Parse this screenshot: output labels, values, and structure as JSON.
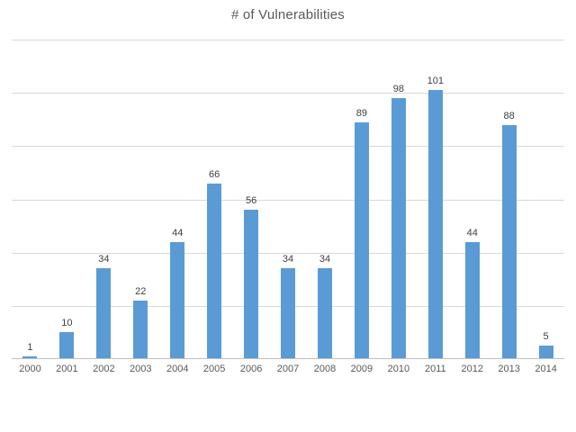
{
  "chart_data": {
    "type": "bar",
    "title": "# of Vulnerabilities",
    "categories": [
      "2000",
      "2001",
      "2002",
      "2003",
      "2004",
      "2005",
      "2006",
      "2007",
      "2008",
      "2009",
      "2010",
      "2011",
      "2012",
      "2013",
      "2014"
    ],
    "values": [
      1,
      10,
      34,
      22,
      44,
      66,
      56,
      34,
      34,
      89,
      98,
      101,
      44,
      88,
      5
    ],
    "xlabel": "",
    "ylabel": "",
    "ylim": [
      0,
      120
    ],
    "grid_step": 20,
    "grid": true,
    "legend_position": "none",
    "data_labels": true,
    "bar_color": "#5b9bd5"
  },
  "colors": {
    "bar": "#5b9bd5",
    "title_text": "#595959",
    "data_label_text": "#404040",
    "axis_label_text": "#595959",
    "gridline": "#d9d9d9",
    "axis_line": "#c0c0c0",
    "background": "#ffffff"
  }
}
